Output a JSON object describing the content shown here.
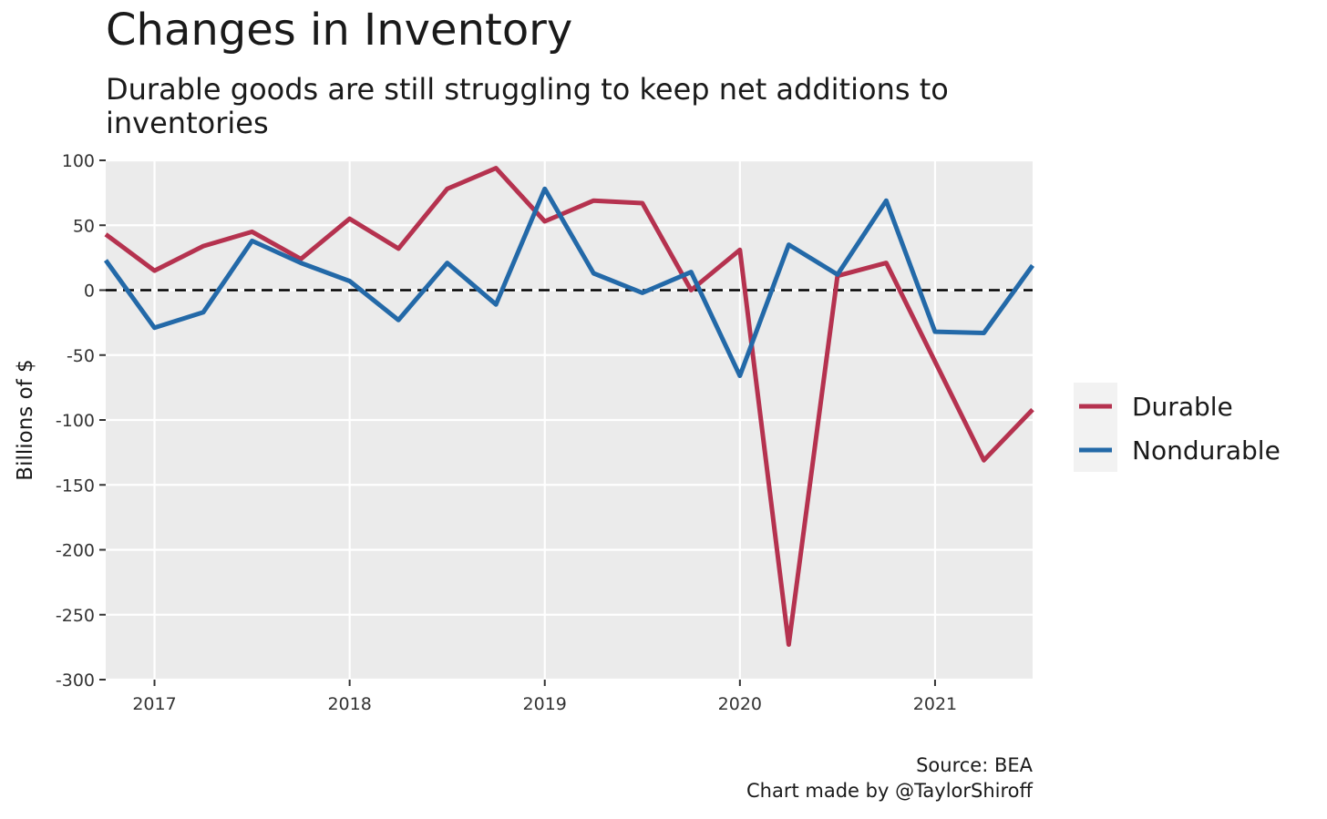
{
  "chart_data": {
    "type": "line",
    "title": "Changes in Inventory",
    "subtitle": "Durable goods are still struggling to keep net additions to inventories",
    "xlabel": "",
    "ylabel": "Billions of $",
    "ylim": [
      -300,
      100
    ],
    "y_ticks": [
      "100",
      "50",
      "0",
      "-50",
      "-100",
      "-150",
      "-200",
      "-250",
      "-300"
    ],
    "x_ticks": [
      "2017",
      "2018",
      "2019",
      "2020",
      "2021"
    ],
    "x": [
      "2016-Q4",
      "2017-Q1",
      "2017-Q2",
      "2017-Q3",
      "2017-Q4",
      "2018-Q1",
      "2018-Q2",
      "2018-Q3",
      "2018-Q4",
      "2019-Q1",
      "2019-Q2",
      "2019-Q3",
      "2019-Q4",
      "2020-Q1",
      "2020-Q2",
      "2020-Q3",
      "2020-Q4",
      "2021-Q1",
      "2021-Q2",
      "2021-Q3"
    ],
    "series": [
      {
        "name": "Durable",
        "color": "#b5324f",
        "values": [
          43,
          15,
          34,
          45,
          24,
          55,
          32,
          78,
          94,
          53,
          69,
          67,
          0,
          31,
          -273,
          11,
          21,
          -55,
          -131,
          -92
        ]
      },
      {
        "name": "Nondurable",
        "color": "#2369a8",
        "values": [
          23,
          -29,
          -17,
          38,
          21,
          7,
          -23,
          21,
          -11,
          78,
          13,
          -2,
          14,
          -66,
          35,
          12,
          69,
          -32,
          -33,
          19
        ]
      }
    ],
    "reference_line": {
      "y": 0,
      "style": "dashed",
      "color": "#000000"
    },
    "grid": true,
    "legend_position": "right",
    "panel_color": "#ebebeb"
  },
  "source": "Source: BEA",
  "credit": "Chart made by @TaylorShiroff"
}
